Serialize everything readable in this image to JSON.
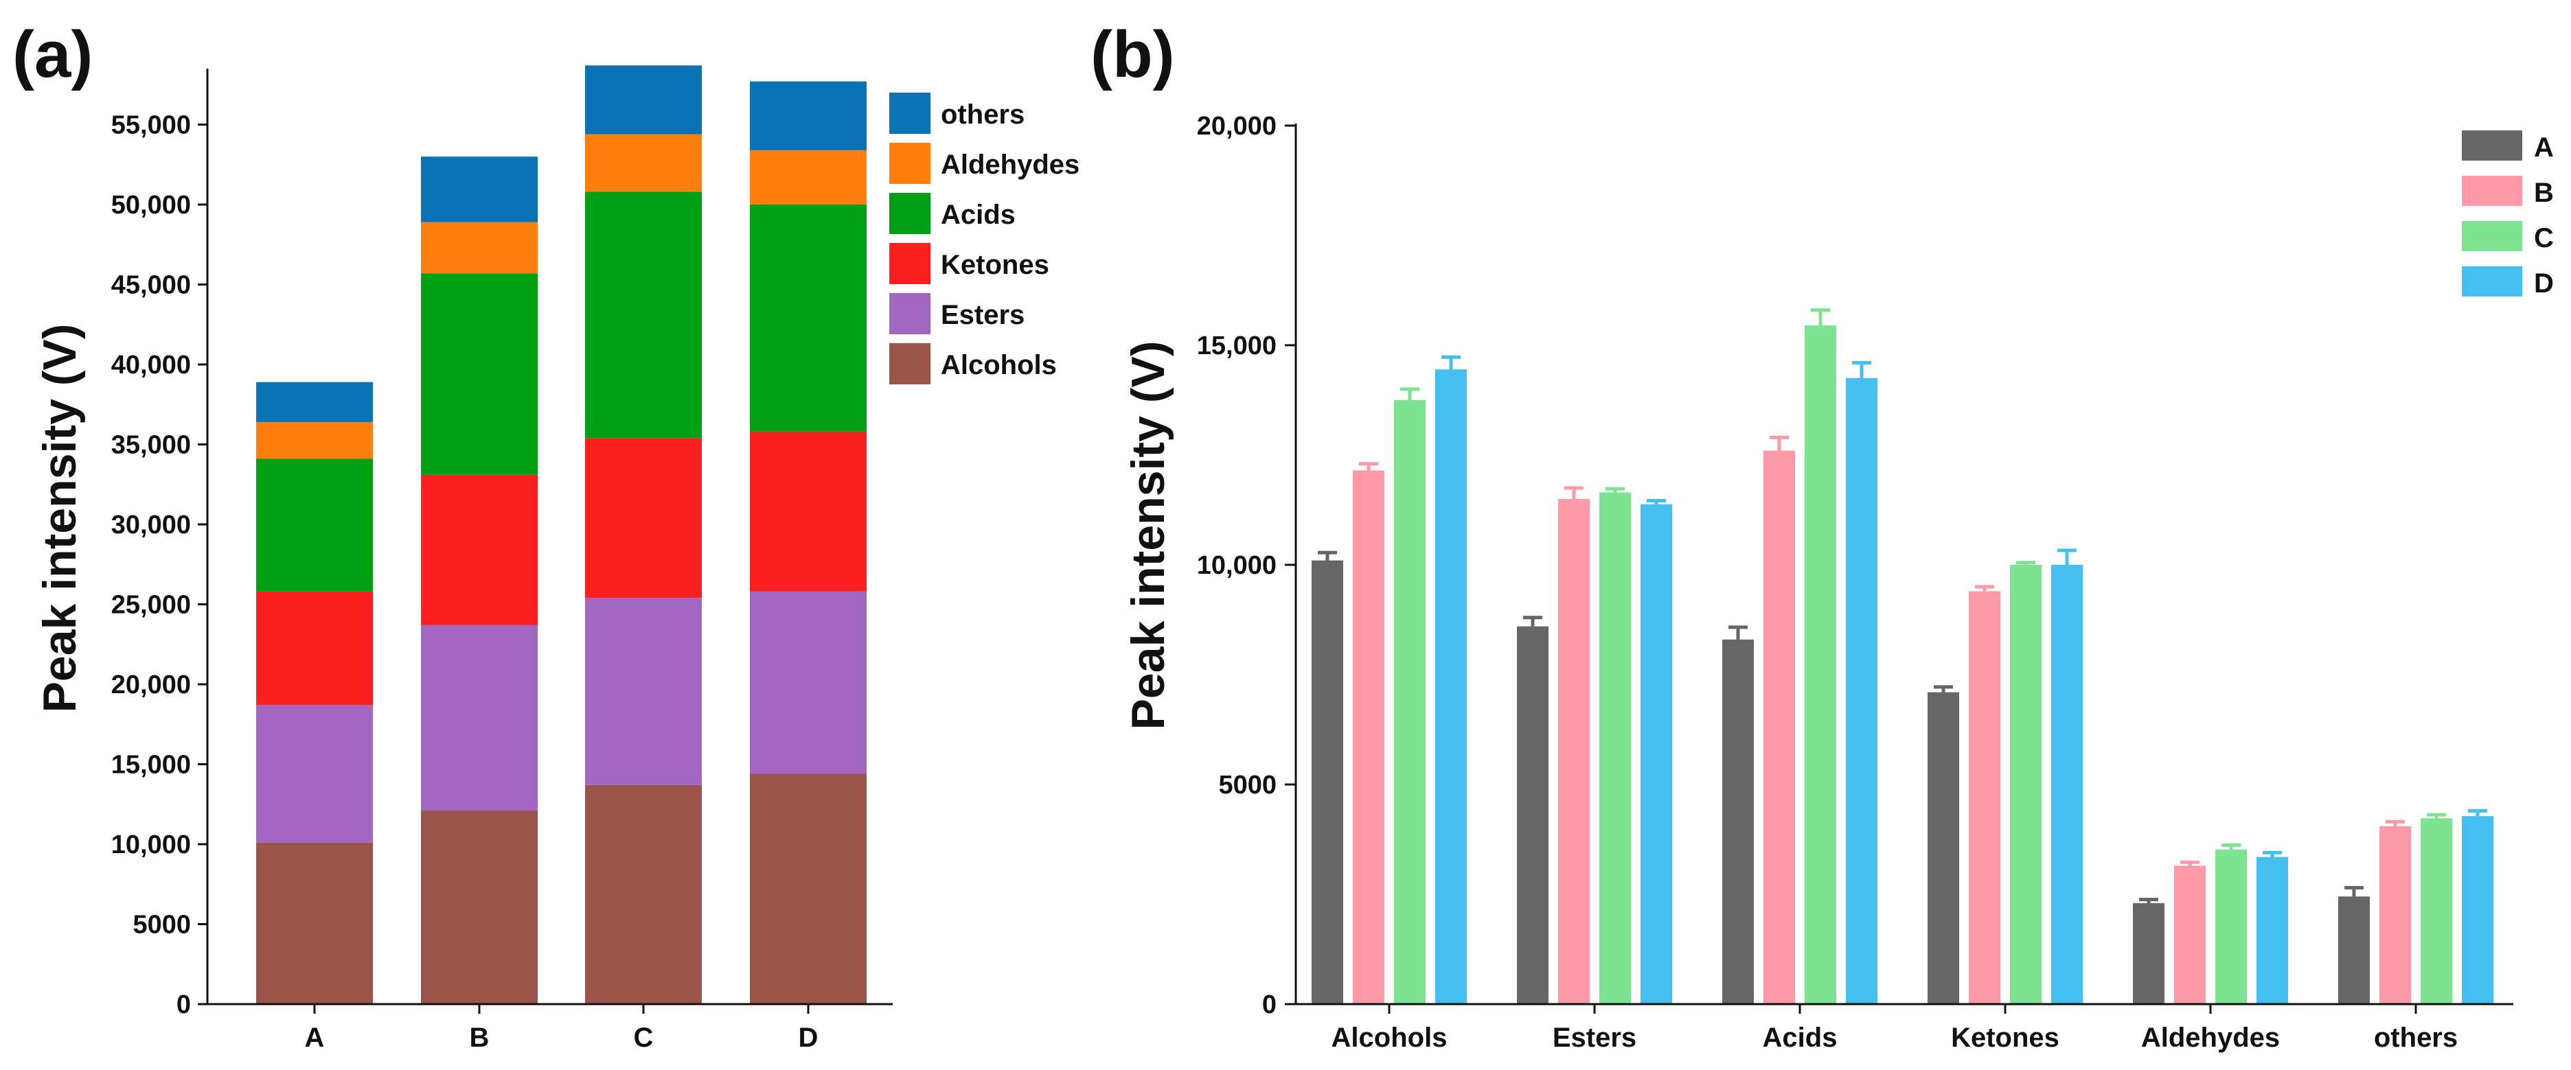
{
  "chart_data": [
    {
      "panel": "(a)",
      "type": "bar",
      "stacked": true,
      "title": "",
      "xlabel": "",
      "ylabel": "Peak intensity (V)",
      "categories": [
        "A",
        "B",
        "C",
        "D"
      ],
      "ylim": [
        0,
        58500
      ],
      "yticks": [
        0,
        5000,
        10000,
        15000,
        20000,
        25000,
        30000,
        35000,
        40000,
        45000,
        50000,
        55000
      ],
      "ytick_labels": [
        "0",
        "5000",
        "10,000",
        "15,000",
        "20,000",
        "25,000",
        "30,000",
        "35,000",
        "40,000",
        "45,000",
        "50,000",
        "55,000"
      ],
      "legend_position": "top-right",
      "series": [
        {
          "name": "Alcohols",
          "color": "#9b5449",
          "values": [
            10100,
            12100,
            13700,
            14400
          ]
        },
        {
          "name": "Esters",
          "color": "#a066c0",
          "values": [
            8600,
            11600,
            11700,
            11400
          ]
        },
        {
          "name": "Ketones",
          "color": "#fa2020",
          "values": [
            7100,
            9400,
            10000,
            10000
          ]
        },
        {
          "name": "Acids",
          "color": "#00a015",
          "values": [
            8300,
            12600,
            15400,
            14200
          ]
        },
        {
          "name": "Aldehydes",
          "color": "#ff7f0e",
          "values": [
            2300,
            3200,
            3600,
            3400
          ]
        },
        {
          "name": "others",
          "color": "#0a73b5",
          "values": [
            2500,
            4100,
            4300,
            4300
          ]
        }
      ]
    },
    {
      "panel": "(b)",
      "type": "bar",
      "stacked": false,
      "title": "",
      "xlabel": "",
      "ylabel": "Peak intensity (V)",
      "categories": [
        "Alcohols",
        "Esters",
        "Acids",
        "Ketones",
        "Aldehydes",
        "others"
      ],
      "ylim": [
        0,
        20000
      ],
      "yticks": [
        0,
        5000,
        10000,
        15000,
        20000
      ],
      "ytick_labels": [
        "0",
        "5000",
        "10,000",
        "15,000",
        "20,000"
      ],
      "legend_position": "top-right",
      "series": [
        {
          "name": "A",
          "color": "#666666",
          "values": [
            10100,
            8600,
            8300,
            7100,
            2300,
            2450
          ],
          "errors": [
            180,
            200,
            280,
            120,
            80,
            200
          ]
        },
        {
          "name": "B",
          "color": "#ff99a8",
          "values": [
            12150,
            11500,
            12600,
            9400,
            3150,
            4050
          ],
          "errors": [
            150,
            250,
            300,
            100,
            80,
            100
          ]
        },
        {
          "name": "C",
          "color": "#7ee391",
          "values": [
            13750,
            11650,
            15450,
            10000,
            3520,
            4230
          ],
          "errors": [
            250,
            80,
            350,
            50,
            100,
            80
          ]
        },
        {
          "name": "D",
          "color": "#44bff0",
          "values": [
            14450,
            11380,
            14250,
            10000,
            3350,
            4280
          ],
          "errors": [
            280,
            80,
            350,
            330,
            100,
            120
          ]
        }
      ]
    }
  ]
}
